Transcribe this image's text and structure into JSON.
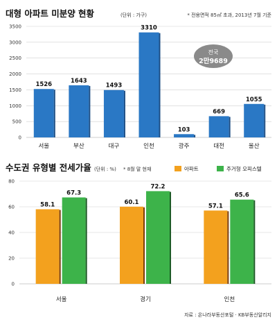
{
  "colors": {
    "blue": "#2a78c5",
    "blue_dark": "#1d4f86",
    "orange": "#f3a11e",
    "orange_dark": "#7a3d0b",
    "green": "#3db34a",
    "green_dark": "#1c5a25",
    "grid": "#cfcfcf",
    "badge": "#8a8a8a"
  },
  "chart_data": [
    {
      "type": "bar",
      "title": "대형 아파트 미분양 현황",
      "unit_label": "(단위 : 가구)",
      "note": "* 전용면적 85㎡ 초과, 2013년 7월 기준",
      "categories": [
        "서울",
        "부산",
        "대구",
        "인천",
        "광주",
        "대전",
        "울산"
      ],
      "values": [
        1526,
        1643,
        1493,
        3310,
        103,
        669,
        1055
      ],
      "value_labels": [
        "1526",
        "1643",
        "1493",
        "3310",
        "103",
        "669",
        "1055"
      ],
      "ylim": [
        0,
        3500
      ],
      "yticks": [
        "0",
        "500",
        "1000",
        "1500",
        "2000",
        "2500",
        "3000",
        "3500"
      ],
      "grid": true,
      "badge": {
        "line1": "전국",
        "line2": "2만9689"
      }
    },
    {
      "type": "bar",
      "title": "수도권 유형별 전세가율",
      "unit_label": "(단위 : %)",
      "note": "* 8월 말 현재",
      "categories": [
        "서울",
        "경기",
        "인천"
      ],
      "series": [
        {
          "name": "아파트",
          "values": [
            58.1,
            60.1,
            57.1
          ],
          "value_labels": [
            "58.1",
            "60.1",
            "57.1"
          ]
        },
        {
          "name": "주거형 오피스텔",
          "values": [
            67.3,
            72.2,
            65.6
          ],
          "value_labels": [
            "67.3",
            "72.2",
            "65.6"
          ]
        }
      ],
      "ylim": [
        0,
        80
      ],
      "yticks": [
        "0",
        "20",
        "40",
        "60",
        "80"
      ],
      "grid": true,
      "legend": "top-right"
    }
  ],
  "source": "자료 : 온나라부동산포털 · KB부동산알리지"
}
